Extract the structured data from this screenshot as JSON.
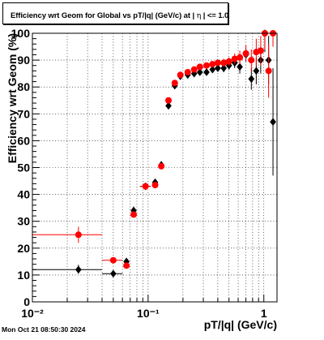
{
  "title": {
    "prefix": "Efficiency wrt Geom for Global vs pT/|q| (GeV/c) at |",
    "eta_symbol": "η",
    "suffix": "| <= 1.0"
  },
  "timestamp": "Mon Oct 21 08:50:30 2024",
  "colors": {
    "series_black": "#000000",
    "series_red": "#ff0000",
    "grid": "#000000"
  },
  "chart_data": {
    "type": "scatter",
    "title": "Efficiency wrt Geom for Global vs pT/|q| (GeV/c) at | η | <= 1.0",
    "xlabel": "pT/|q| (GeV/c)",
    "ylabel": "Efficiency wrt Geom (%)",
    "x_scale": "log",
    "xlim": [
      0.01,
      1.3
    ],
    "ylim": [
      0,
      100
    ],
    "x_tick_labels": [
      "10⁻²",
      "10⁻¹",
      "1"
    ],
    "y_tick_labels": [
      "0",
      "10",
      "20",
      "30",
      "40",
      "50",
      "60",
      "70",
      "80",
      "90",
      "100"
    ],
    "grid": true,
    "series": [
      {
        "marker": "diamond",
        "color": "#000000",
        "points": [
          {
            "x": 0.025,
            "y": 12.0,
            "xlo": 0.01,
            "xhi": 0.04,
            "ylo": 10.5,
            "yhi": 13.8
          },
          {
            "x": 0.05,
            "y": 10.5,
            "xlo": 0.04,
            "xhi": 0.06,
            "ylo": 10.5,
            "yhi": 10.5
          },
          {
            "x": 0.065,
            "y": 15.0,
            "xlo": 0.065,
            "xhi": 0.065,
            "ylo": 13.5,
            "yhi": 16.3
          },
          {
            "x": 0.075,
            "y": 34.0,
            "xlo": 0.075,
            "xhi": 0.075,
            "ylo": 32.5,
            "yhi": 35.5
          },
          {
            "x": 0.095,
            "y": 43.0,
            "xlo": 0.085,
            "xhi": 0.105,
            "ylo": 42.0,
            "yhi": 44.0
          },
          {
            "x": 0.115,
            "y": 44.5,
            "xlo": 0.115,
            "xhi": 0.115,
            "ylo": 43.5,
            "yhi": 45.5
          },
          {
            "x": 0.13,
            "y": 51.0,
            "xlo": 0.13,
            "xhi": 0.13,
            "ylo": 50.0,
            "yhi": 52.0
          },
          {
            "x": 0.15,
            "y": 73.0,
            "xlo": 0.15,
            "xhi": 0.15,
            "ylo": 72.0,
            "yhi": 74.0
          },
          {
            "x": 0.17,
            "y": 80.5,
            "xlo": 0.17,
            "xhi": 0.17,
            "ylo": 79.5,
            "yhi": 81.5
          },
          {
            "x": 0.19,
            "y": 84.0,
            "xlo": 0.19,
            "xhi": 0.19,
            "ylo": 83.0,
            "yhi": 85.0
          },
          {
            "x": 0.22,
            "y": 84.5,
            "xlo": 0.22,
            "xhi": 0.22,
            "ylo": 83.5,
            "yhi": 85.5
          },
          {
            "x": 0.25,
            "y": 85.0,
            "xlo": 0.25,
            "xhi": 0.25,
            "ylo": 84.0,
            "yhi": 86.0
          },
          {
            "x": 0.28,
            "y": 85.5,
            "xlo": 0.28,
            "xhi": 0.28,
            "ylo": 84.5,
            "yhi": 86.5
          },
          {
            "x": 0.32,
            "y": 85.5,
            "xlo": 0.32,
            "xhi": 0.32,
            "ylo": 84.5,
            "yhi": 86.5
          },
          {
            "x": 0.36,
            "y": 86.5,
            "xlo": 0.36,
            "xhi": 0.36,
            "ylo": 85.5,
            "yhi": 87.5
          },
          {
            "x": 0.4,
            "y": 87.0,
            "xlo": 0.4,
            "xhi": 0.4,
            "ylo": 86.0,
            "yhi": 88.0
          },
          {
            "x": 0.45,
            "y": 87.0,
            "xlo": 0.45,
            "xhi": 0.45,
            "ylo": 85.5,
            "yhi": 88.5
          },
          {
            "x": 0.5,
            "y": 88.0,
            "xlo": 0.5,
            "xhi": 0.5,
            "ylo": 86.5,
            "yhi": 89.5
          },
          {
            "x": 0.56,
            "y": 89.0,
            "xlo": 0.56,
            "xhi": 0.56,
            "ylo": 87.0,
            "yhi": 91.0
          },
          {
            "x": 0.62,
            "y": 87.5,
            "xlo": 0.62,
            "xhi": 0.62,
            "ylo": 85.0,
            "yhi": 90.0
          },
          {
            "x": 0.7,
            "y": 92.0,
            "xlo": 0.7,
            "xhi": 0.7,
            "ylo": 89.5,
            "yhi": 94.5
          },
          {
            "x": 0.78,
            "y": 83.0,
            "xlo": 0.78,
            "xhi": 0.78,
            "ylo": 79.0,
            "yhi": 87.0
          },
          {
            "x": 0.86,
            "y": 86.0,
            "xlo": 0.86,
            "xhi": 0.86,
            "ylo": 81.0,
            "yhi": 91.0
          },
          {
            "x": 0.94,
            "y": 90.0,
            "xlo": 0.94,
            "xhi": 0.94,
            "ylo": 85.0,
            "yhi": 95.0
          },
          {
            "x": 1.02,
            "y": 100.0,
            "xlo": 1.02,
            "xhi": 1.02,
            "ylo": 93.0,
            "yhi": 100.0
          },
          {
            "x": 1.1,
            "y": 90.0,
            "xlo": 1.1,
            "xhi": 1.1,
            "ylo": 81.0,
            "yhi": 99.0
          },
          {
            "x": 1.2,
            "y": 67.0,
            "xlo": 1.2,
            "xhi": 1.2,
            "ylo": 47.0,
            "yhi": 87.0
          }
        ]
      },
      {
        "marker": "circle",
        "color": "#ff0000",
        "points": [
          {
            "x": 0.025,
            "y": 25.0,
            "xlo": 0.01,
            "xhi": 0.04,
            "ylo": 22.0,
            "yhi": 28.0
          },
          {
            "x": 0.05,
            "y": 15.5,
            "xlo": 0.04,
            "xhi": 0.06,
            "ylo": 14.5,
            "yhi": 16.5
          },
          {
            "x": 0.065,
            "y": 13.5,
            "xlo": 0.065,
            "xhi": 0.065,
            "ylo": 12.5,
            "yhi": 14.5
          },
          {
            "x": 0.075,
            "y": 32.5,
            "xlo": 0.075,
            "xhi": 0.075,
            "ylo": 31.5,
            "yhi": 33.5
          },
          {
            "x": 0.095,
            "y": 43.0,
            "xlo": 0.085,
            "xhi": 0.105,
            "ylo": 42.0,
            "yhi": 44.0
          },
          {
            "x": 0.115,
            "y": 43.5,
            "xlo": 0.115,
            "xhi": 0.115,
            "ylo": 42.5,
            "yhi": 44.5
          },
          {
            "x": 0.13,
            "y": 50.5,
            "xlo": 0.13,
            "xhi": 0.13,
            "ylo": 49.5,
            "yhi": 51.5
          },
          {
            "x": 0.15,
            "y": 75.0,
            "xlo": 0.15,
            "xhi": 0.15,
            "ylo": 74.0,
            "yhi": 76.0
          },
          {
            "x": 0.17,
            "y": 81.5,
            "xlo": 0.17,
            "xhi": 0.17,
            "ylo": 80.5,
            "yhi": 82.5
          },
          {
            "x": 0.19,
            "y": 84.5,
            "xlo": 0.19,
            "xhi": 0.19,
            "ylo": 83.5,
            "yhi": 85.5
          },
          {
            "x": 0.22,
            "y": 85.5,
            "xlo": 0.22,
            "xhi": 0.22,
            "ylo": 84.5,
            "yhi": 86.5
          },
          {
            "x": 0.25,
            "y": 86.5,
            "xlo": 0.25,
            "xhi": 0.25,
            "ylo": 85.5,
            "yhi": 87.5
          },
          {
            "x": 0.28,
            "y": 87.5,
            "xlo": 0.28,
            "xhi": 0.28,
            "ylo": 86.5,
            "yhi": 88.5
          },
          {
            "x": 0.32,
            "y": 88.0,
            "xlo": 0.32,
            "xhi": 0.32,
            "ylo": 87.0,
            "yhi": 89.0
          },
          {
            "x": 0.36,
            "y": 88.5,
            "xlo": 0.36,
            "xhi": 0.36,
            "ylo": 87.5,
            "yhi": 89.5
          },
          {
            "x": 0.4,
            "y": 89.0,
            "xlo": 0.4,
            "xhi": 0.4,
            "ylo": 88.0,
            "yhi": 90.0
          },
          {
            "x": 0.45,
            "y": 89.0,
            "xlo": 0.45,
            "xhi": 0.45,
            "ylo": 87.5,
            "yhi": 90.5
          },
          {
            "x": 0.5,
            "y": 89.5,
            "xlo": 0.5,
            "xhi": 0.5,
            "ylo": 88.0,
            "yhi": 91.0
          },
          {
            "x": 0.56,
            "y": 90.5,
            "xlo": 0.56,
            "xhi": 0.56,
            "ylo": 88.5,
            "yhi": 92.5
          },
          {
            "x": 0.62,
            "y": 91.0,
            "xlo": 0.62,
            "xhi": 0.62,
            "ylo": 88.5,
            "yhi": 93.5
          },
          {
            "x": 0.7,
            "y": 92.5,
            "xlo": 0.7,
            "xhi": 0.7,
            "ylo": 89.5,
            "yhi": 95.5
          },
          {
            "x": 0.78,
            "y": 90.0,
            "xlo": 0.78,
            "xhi": 0.78,
            "ylo": 86.0,
            "yhi": 94.0
          },
          {
            "x": 0.86,
            "y": 93.0,
            "xlo": 0.86,
            "xhi": 0.86,
            "ylo": 88.0,
            "yhi": 98.0
          },
          {
            "x": 0.94,
            "y": 93.5,
            "xlo": 0.94,
            "xhi": 0.94,
            "ylo": 88.0,
            "yhi": 99.0
          },
          {
            "x": 1.02,
            "y": 100.0,
            "xlo": 1.02,
            "xhi": 1.02,
            "ylo": 94.0,
            "yhi": 100.0
          },
          {
            "x": 1.1,
            "y": 86.0,
            "xlo": 1.1,
            "xhi": 1.1,
            "ylo": 76.0,
            "yhi": 96.0
          },
          {
            "x": 1.2,
            "y": 100.0,
            "xlo": 1.2,
            "xhi": 1.2,
            "ylo": 95.0,
            "yhi": 100.0
          }
        ]
      }
    ]
  }
}
